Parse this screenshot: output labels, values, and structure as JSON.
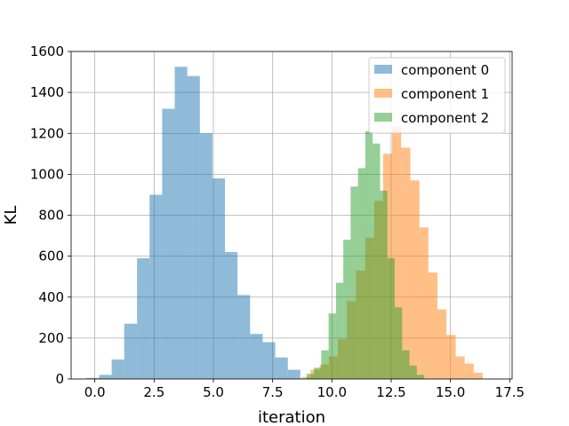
{
  "chart_data": {
    "type": "bar",
    "xlabel": "iteration",
    "ylabel": "KL",
    "xlim": [
      -1.0,
      17.6
    ],
    "ylim": [
      0,
      1600
    ],
    "xticks": [
      "0.0",
      "2.5",
      "5.0",
      "7.5",
      "10.0",
      "12.5",
      "15.0",
      "17.5"
    ],
    "yticks": [
      "0",
      "200",
      "400",
      "600",
      "800",
      "1000",
      "1200",
      "1400",
      "1600"
    ],
    "grid": true,
    "legend_position": "top-right",
    "series": [
      {
        "name": "component 0",
        "color": "#1f77b4",
        "bin_edges": [
          -0.35,
          0.18,
          0.71,
          1.24,
          1.78,
          2.31,
          2.84,
          3.37,
          3.9,
          4.43,
          4.96,
          5.49,
          6.02,
          6.55,
          7.08,
          7.61,
          8.14,
          8.67
        ],
        "counts": [
          5,
          20,
          95,
          270,
          590,
          900,
          1320,
          1525,
          1480,
          1200,
          980,
          620,
          410,
          220,
          180,
          105,
          45
        ]
      },
      {
        "name": "component 1",
        "color": "#ff7f0e",
        "bin_edges": [
          8.72,
          9.1,
          9.49,
          9.87,
          10.25,
          10.63,
          11.01,
          11.4,
          11.78,
          12.16,
          12.54,
          12.92,
          13.31,
          13.69,
          14.07,
          14.45,
          14.83,
          15.22,
          15.6,
          15.98,
          16.36
        ],
        "counts": [
          10,
          45,
          70,
          110,
          195,
          380,
          530,
          690,
          870,
          1100,
          1230,
          1130,
          970,
          740,
          520,
          340,
          215,
          110,
          75,
          30
        ]
      },
      {
        "name": "component 2",
        "color": "#2ca02c",
        "bin_edges": [
          8.93,
          9.24,
          9.55,
          9.86,
          10.17,
          10.48,
          10.79,
          11.1,
          11.41,
          11.72,
          12.03,
          12.34,
          12.65,
          12.96,
          13.27,
          13.58,
          13.89
        ],
        "counts": [
          25,
          55,
          140,
          320,
          470,
          680,
          940,
          1030,
          1210,
          1150,
          920,
          590,
          350,
          140,
          65,
          20
        ]
      }
    ]
  }
}
